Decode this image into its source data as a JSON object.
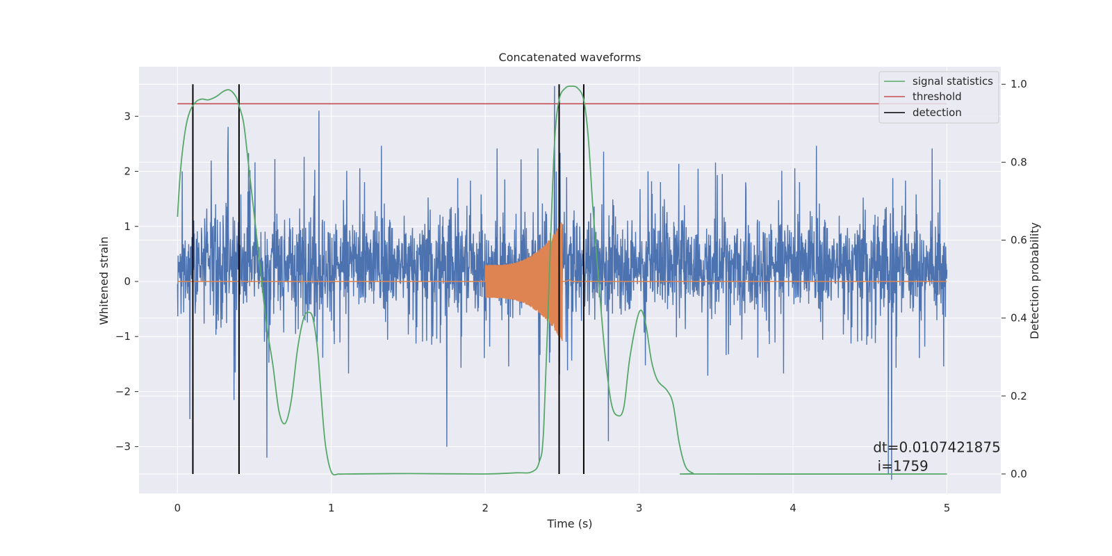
{
  "chart_data": {
    "type": "line",
    "title": "Concatenated waveforms",
    "xlabel": "Time (s)",
    "ylabel": "Whitened strain",
    "y2label": "Detection probability",
    "xlim": [
      -0.25,
      5.35
    ],
    "ylim": [
      -3.85,
      3.9
    ],
    "y2lim": [
      -0.05,
      1.045
    ],
    "xticks": [
      0,
      1,
      2,
      3,
      4,
      5
    ],
    "xtick_labels": [
      "0",
      "1",
      "2",
      "3",
      "4",
      "5"
    ],
    "yticks": [
      -3,
      -2,
      -1,
      0,
      1,
      2,
      3
    ],
    "ytick_labels": [
      "−3",
      "−2",
      "−1",
      "0",
      "1",
      "2",
      "3"
    ],
    "y2ticks": [
      0.0,
      0.2,
      0.4,
      0.6,
      0.8,
      1.0
    ],
    "y2tick_labels": [
      "0.0",
      "0.2",
      "0.4",
      "0.6",
      "0.8",
      "1.0"
    ],
    "grid": true,
    "legend_position": "top-right",
    "colors": {
      "strain": "#4c72b0",
      "template": "#dd8452",
      "signal_statistics": "#55a868",
      "threshold": "#c44e52",
      "detection": "#000000",
      "axes_background": "#eaeaf2",
      "grid": "#ffffff"
    },
    "series": [
      {
        "role": "strain",
        "axis": "left",
        "x_range": [
          0,
          5
        ],
        "typical_envelope": [
          -1.5,
          2.3
        ],
        "notable_peaks": [
          {
            "x": 0.03,
            "y": 2.0
          },
          {
            "x": 0.08,
            "y": -2.5
          },
          {
            "x": 0.58,
            "y": -3.2
          },
          {
            "x": 0.92,
            "y": 3.1
          },
          {
            "x": 1.75,
            "y": -3.0
          },
          {
            "x": 2.35,
            "y": -3.3
          },
          {
            "x": 2.45,
            "y": 3.55
          },
          {
            "x": 2.8,
            "y": -2.9
          },
          {
            "x": 4.62,
            "y": -3.5
          },
          {
            "x": 4.64,
            "y": -3.6
          }
        ]
      },
      {
        "role": "template",
        "axis": "left",
        "x_range": [
          0,
          5
        ],
        "chirp_start": 2.0,
        "chirp_end": 2.5,
        "start_amplitude": 0.3,
        "peak_amplitude": 1.1
      },
      {
        "name": "signal statistics",
        "axis": "right",
        "x": [
          0.0,
          0.02,
          0.05,
          0.08,
          0.12,
          0.16,
          0.2,
          0.25,
          0.3,
          0.34,
          0.38,
          0.4,
          0.43,
          0.46,
          0.5,
          0.54,
          0.58,
          0.62,
          0.66,
          0.7,
          0.74,
          0.78,
          0.82,
          0.85,
          0.88,
          0.91,
          0.93,
          0.96,
          1.0,
          1.05,
          1.1,
          1.5,
          2.0,
          2.2,
          2.3,
          2.35,
          2.38,
          2.42,
          2.45,
          2.48,
          2.52,
          2.56,
          2.6,
          2.64,
          2.67,
          2.7,
          2.74,
          2.78,
          2.82,
          2.86,
          2.9,
          2.94,
          3.0,
          3.04,
          3.08,
          3.12,
          3.18,
          3.22,
          3.26,
          3.3,
          3.35,
          3.4,
          5.0
        ],
        "y": [
          0.66,
          0.78,
          0.88,
          0.93,
          0.955,
          0.962,
          0.96,
          0.968,
          0.982,
          0.985,
          0.968,
          0.945,
          0.9,
          0.8,
          0.66,
          0.52,
          0.38,
          0.28,
          0.16,
          0.13,
          0.19,
          0.32,
          0.4,
          0.415,
          0.4,
          0.32,
          0.22,
          0.08,
          0.005,
          0.0,
          0.0,
          0.001,
          0.0,
          0.003,
          0.005,
          0.03,
          0.12,
          0.55,
          0.85,
          0.96,
          0.99,
          0.995,
          0.99,
          0.96,
          0.86,
          0.68,
          0.48,
          0.3,
          0.18,
          0.15,
          0.17,
          0.3,
          0.415,
          0.39,
          0.29,
          0.24,
          0.215,
          0.18,
          0.08,
          0.02,
          0.002,
          0.0,
          0.0
        ]
      },
      {
        "name": "threshold",
        "axis": "right",
        "value": 0.95,
        "x_range": [
          0,
          5
        ]
      },
      {
        "name": "detection",
        "axis": "right",
        "x": [
          0.1,
          0.4,
          2.48,
          2.64
        ],
        "y_range": [
          0.0,
          1.0
        ]
      }
    ],
    "annotation": {
      "line1": "dt=0.0107421875",
      "line2": " i=1759",
      "x": 4.52,
      "y": -3.0
    }
  }
}
